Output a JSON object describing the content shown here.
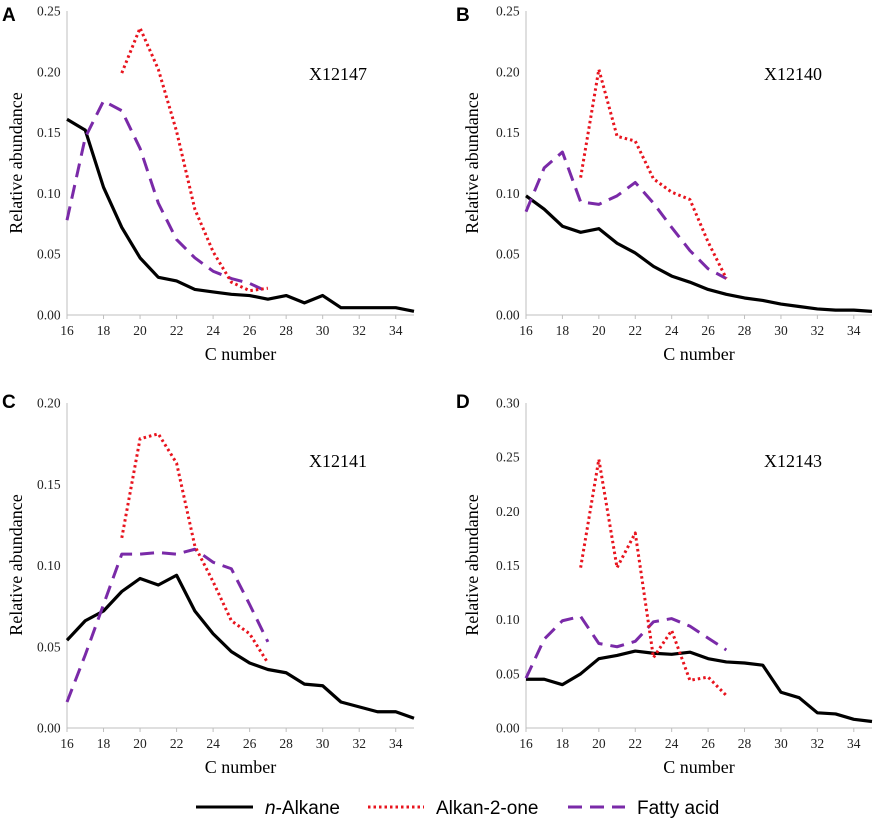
{
  "chart_data": [
    {
      "type": "line",
      "panel": "A",
      "sample": "X12147",
      "xlabel": "C number",
      "ylabel": "Relative abundance",
      "xlim": [
        16,
        35
      ],
      "xticks": [
        16,
        18,
        20,
        22,
        24,
        26,
        28,
        30,
        32,
        34
      ],
      "ylim": [
        0,
        0.25
      ],
      "yticks": [
        "0.00",
        "0.05",
        "0.10",
        "0.15",
        "0.20",
        "0.25"
      ],
      "series": [
        {
          "name": "n-Alkane",
          "x": [
            16,
            17,
            18,
            19,
            20,
            21,
            22,
            23,
            24,
            25,
            26,
            27,
            28,
            29,
            30,
            31,
            32,
            33,
            34,
            35
          ],
          "values": [
            0.161,
            0.152,
            0.105,
            0.072,
            0.047,
            0.031,
            0.028,
            0.021,
            0.019,
            0.017,
            0.016,
            0.013,
            0.016,
            0.01,
            0.016,
            0.006,
            0.006,
            0.006,
            0.006,
            0.003
          ]
        },
        {
          "name": "Alkan-2-one",
          "x": [
            19,
            20,
            21,
            22,
            23,
            24,
            25,
            26,
            27
          ],
          "values": [
            0.199,
            0.236,
            0.202,
            0.151,
            0.087,
            0.052,
            0.027,
            0.02,
            0.022
          ]
        },
        {
          "name": "Fatty acid",
          "x": [
            16,
            17,
            18,
            19,
            20,
            21,
            22,
            23,
            24,
            25,
            26,
            27
          ],
          "values": [
            0.078,
            0.146,
            0.176,
            0.168,
            0.137,
            0.092,
            0.062,
            0.047,
            0.036,
            0.03,
            0.026,
            0.019
          ]
        }
      ]
    },
    {
      "type": "line",
      "panel": "B",
      "sample": "X12140",
      "xlabel": "C number",
      "ylabel": "Relative abundance",
      "xlim": [
        16,
        35
      ],
      "xticks": [
        16,
        18,
        20,
        22,
        24,
        26,
        28,
        30,
        32,
        34
      ],
      "ylim": [
        0,
        0.25
      ],
      "yticks": [
        "0.00",
        "0.05",
        "0.10",
        "0.15",
        "0.20",
        "0.25"
      ],
      "series": [
        {
          "name": "n-Alkane",
          "x": [
            16,
            17,
            18,
            19,
            20,
            21,
            22,
            23,
            24,
            25,
            26,
            27,
            28,
            29,
            30,
            31,
            32,
            33,
            34,
            35
          ],
          "values": [
            0.098,
            0.087,
            0.073,
            0.068,
            0.071,
            0.059,
            0.051,
            0.04,
            0.032,
            0.027,
            0.021,
            0.017,
            0.014,
            0.012,
            0.009,
            0.007,
            0.005,
            0.004,
            0.004,
            0.003
          ]
        },
        {
          "name": "Alkan-2-one",
          "x": [
            19,
            20,
            21,
            22,
            23,
            24,
            25,
            26,
            27
          ],
          "values": [
            0.113,
            0.202,
            0.147,
            0.143,
            0.112,
            0.101,
            0.095,
            0.06,
            0.03
          ]
        },
        {
          "name": "Fatty acid",
          "x": [
            16,
            17,
            18,
            19,
            20,
            21,
            22,
            23,
            24,
            25,
            26,
            27
          ],
          "values": [
            0.085,
            0.121,
            0.134,
            0.093,
            0.091,
            0.098,
            0.109,
            0.092,
            0.072,
            0.053,
            0.038,
            0.03
          ]
        }
      ]
    },
    {
      "type": "line",
      "panel": "C",
      "sample": "X12141",
      "xlabel": "C number",
      "ylabel": "Relative abundance",
      "xlim": [
        16,
        35
      ],
      "xticks": [
        16,
        18,
        20,
        22,
        24,
        26,
        28,
        30,
        32,
        34
      ],
      "ylim": [
        0,
        0.2
      ],
      "yticks": [
        "0.00",
        "0.05",
        "0.10",
        "0.15",
        "0.20"
      ],
      "series": [
        {
          "name": "n-Alkane",
          "x": [
            16,
            17,
            18,
            19,
            20,
            21,
            22,
            23,
            24,
            25,
            26,
            27,
            28,
            29,
            30,
            31,
            32,
            33,
            34,
            35
          ],
          "values": [
            0.054,
            0.066,
            0.072,
            0.084,
            0.092,
            0.088,
            0.094,
            0.072,
            0.058,
            0.047,
            0.04,
            0.036,
            0.034,
            0.027,
            0.026,
            0.016,
            0.013,
            0.01,
            0.01,
            0.006
          ]
        },
        {
          "name": "Alkan-2-one",
          "x": [
            19,
            20,
            21,
            22,
            23,
            24,
            25,
            26,
            27
          ],
          "values": [
            0.117,
            0.178,
            0.181,
            0.163,
            0.112,
            0.09,
            0.066,
            0.058,
            0.04
          ]
        },
        {
          "name": "Fatty acid",
          "x": [
            16,
            17,
            18,
            19,
            20,
            21,
            22,
            23,
            24,
            25,
            26,
            27
          ],
          "values": [
            0.016,
            0.045,
            0.076,
            0.107,
            0.107,
            0.108,
            0.107,
            0.11,
            0.102,
            0.098,
            0.076,
            0.053
          ]
        }
      ]
    },
    {
      "type": "line",
      "panel": "D",
      "sample": "X12143",
      "xlabel": "C number",
      "ylabel": "Relative abundance",
      "xlim": [
        16,
        35
      ],
      "xticks": [
        16,
        18,
        20,
        22,
        24,
        26,
        28,
        30,
        32,
        34
      ],
      "ylim": [
        0,
        0.3
      ],
      "yticks": [
        "0.00",
        "0.05",
        "0.10",
        "0.15",
        "0.20",
        "0.25",
        "0.30"
      ],
      "series": [
        {
          "name": "n-Alkane",
          "x": [
            16,
            17,
            18,
            19,
            20,
            21,
            22,
            23,
            24,
            25,
            26,
            27,
            28,
            29,
            30,
            31,
            32,
            33,
            34,
            35
          ],
          "values": [
            0.045,
            0.045,
            0.04,
            0.05,
            0.064,
            0.067,
            0.071,
            0.069,
            0.068,
            0.07,
            0.064,
            0.061,
            0.06,
            0.058,
            0.033,
            0.028,
            0.014,
            0.013,
            0.008,
            0.006
          ]
        },
        {
          "name": "Alkan-2-one",
          "x": [
            19,
            20,
            21,
            22,
            23,
            24,
            25,
            26,
            27
          ],
          "values": [
            0.148,
            0.248,
            0.148,
            0.18,
            0.065,
            0.09,
            0.044,
            0.047,
            0.03
          ]
        },
        {
          "name": "Fatty acid",
          "x": [
            16,
            17,
            18,
            19,
            20,
            21,
            22,
            23,
            24,
            25,
            26,
            27
          ],
          "values": [
            0.046,
            0.082,
            0.099,
            0.103,
            0.078,
            0.075,
            0.08,
            0.098,
            0.101,
            0.094,
            0.083,
            0.072
          ]
        }
      ]
    }
  ],
  "legend": {
    "entries": [
      {
        "prefix": "n",
        "label": "-Alkane",
        "color": "#000000"
      },
      {
        "label": "Alkan-2-one",
        "color": "#e8141e"
      },
      {
        "label": "Fatty acid",
        "color": "#7a2aa8"
      }
    ]
  },
  "colors": {
    "n-Alkane": "#000000",
    "Alkan-2-one": "#e8141e",
    "Fatty acid": "#7a2aa8",
    "axis": "#bfbfbf"
  }
}
